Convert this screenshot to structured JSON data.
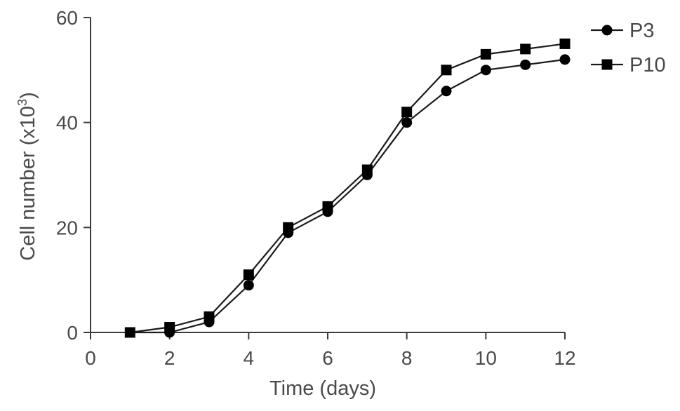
{
  "chart_data": {
    "type": "line",
    "xlabel": "Time (days)",
    "ylabel_main": "Cell number (x10",
    "ylabel_sup": "3",
    "ylabel_close": ")",
    "xlim": [
      0,
      12
    ],
    "ylim": [
      0,
      60
    ],
    "x_ticks": [
      0,
      2,
      4,
      6,
      8,
      10,
      12
    ],
    "y_ticks": [
      0,
      20,
      40,
      60
    ],
    "grid": false,
    "legend_position": "top-right",
    "x": [
      1,
      2,
      3,
      4,
      5,
      6,
      7,
      8,
      9,
      10,
      11,
      12
    ],
    "series": [
      {
        "name": "P3",
        "marker": "circle",
        "values": [
          0,
          0,
          2,
          9,
          19,
          23,
          30,
          40,
          46,
          50,
          51,
          52
        ]
      },
      {
        "name": "P10",
        "marker": "square",
        "values": [
          0,
          1,
          3,
          11,
          20,
          24,
          31,
          42,
          50,
          53,
          54,
          55
        ]
      }
    ]
  }
}
